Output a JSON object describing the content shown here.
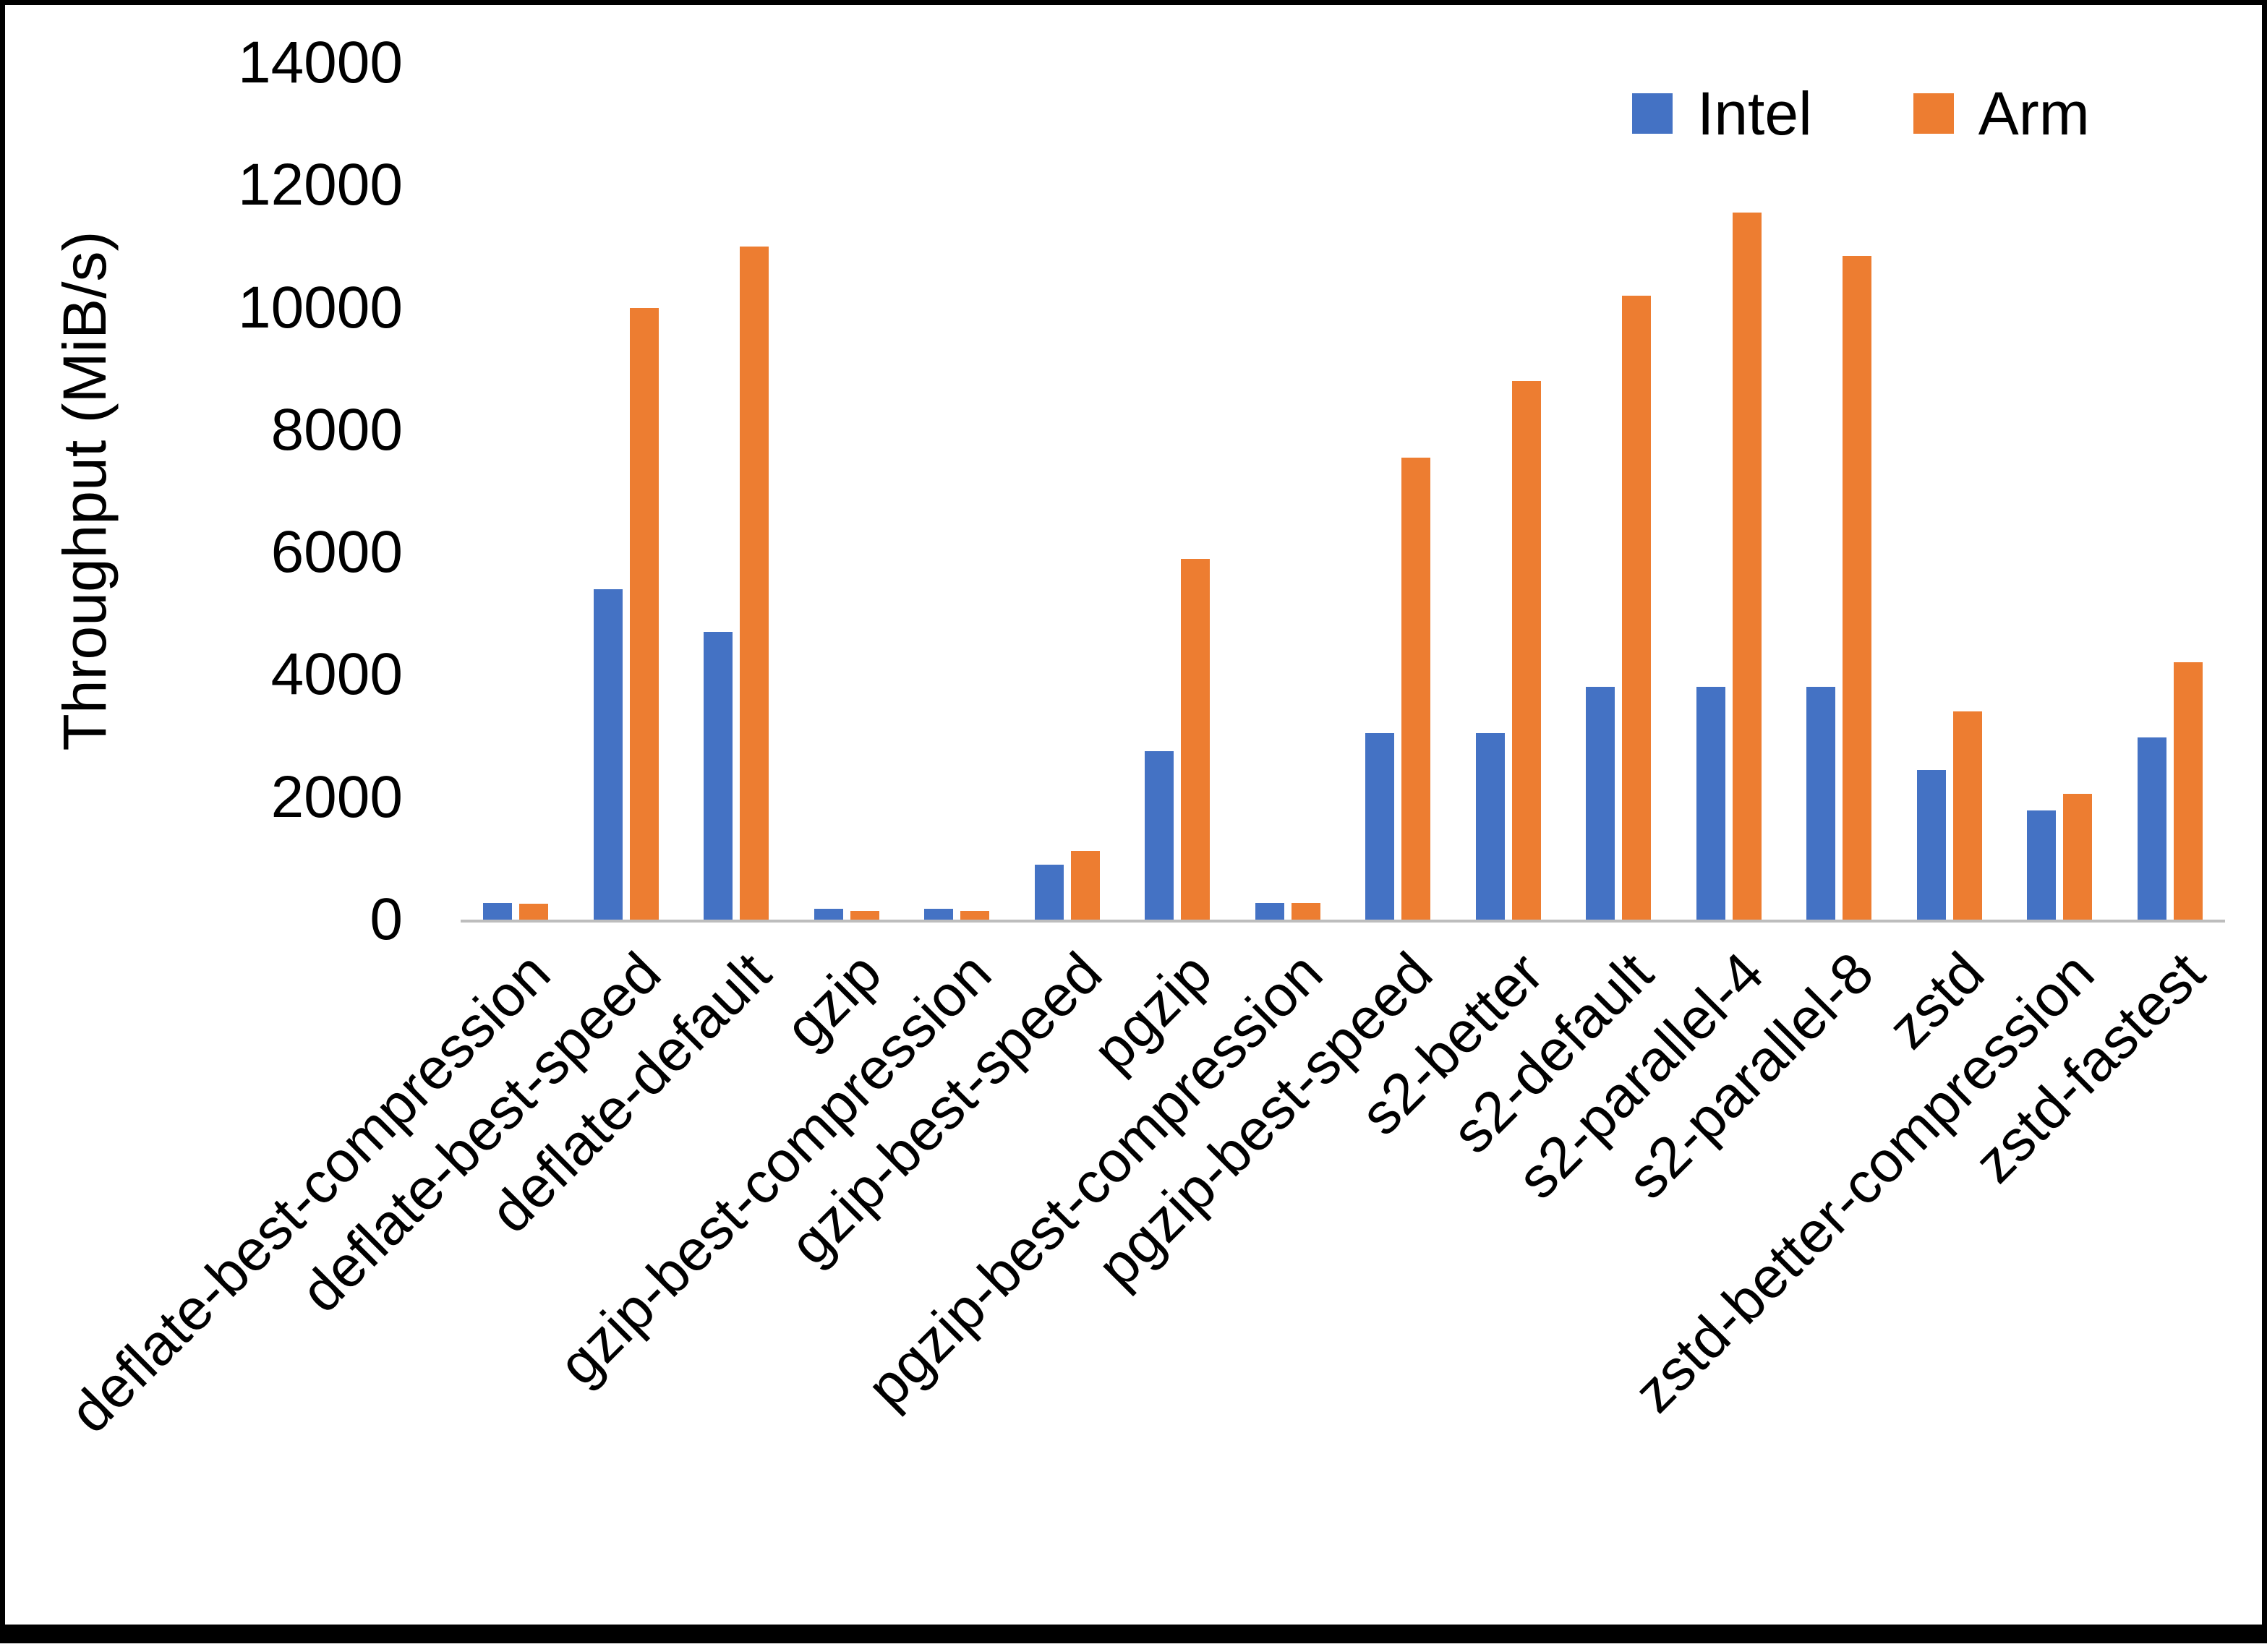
{
  "chart_data": {
    "type": "bar",
    "title": "",
    "xlabel": "",
    "ylabel": "Throughput (MiB/s)",
    "ylim": [
      0,
      14000
    ],
    "yticks": [
      0,
      2000,
      4000,
      6000,
      8000,
      10000,
      12000,
      14000
    ],
    "grid": false,
    "legend_position": "top-right",
    "categories": [
      "deflate-best-compression",
      "deflate-best-speed",
      "deflate-default",
      "gzip",
      "gzip-best-compression",
      "gzip-best-speed",
      "pgzip",
      "pgzip-best-compression",
      "pgzip-best-speed",
      "s2-better",
      "s2-default",
      "s2-parallel-4",
      "s2-parallel-8",
      "zstd",
      "zstd-better-compression",
      "zstd-fastest"
    ],
    "series": [
      {
        "name": "Intel",
        "color": "#4472C4",
        "values": [
          270,
          5400,
          4700,
          180,
          180,
          900,
          2750,
          270,
          3050,
          3050,
          3800,
          3800,
          3800,
          2450,
          1780,
          2980
        ]
      },
      {
        "name": "Arm",
        "color": "#ED7D31",
        "values": [
          260,
          10000,
          11000,
          140,
          140,
          1120,
          5900,
          270,
          7550,
          8800,
          10200,
          11550,
          10850,
          3400,
          2050,
          4200
        ]
      }
    ]
  }
}
